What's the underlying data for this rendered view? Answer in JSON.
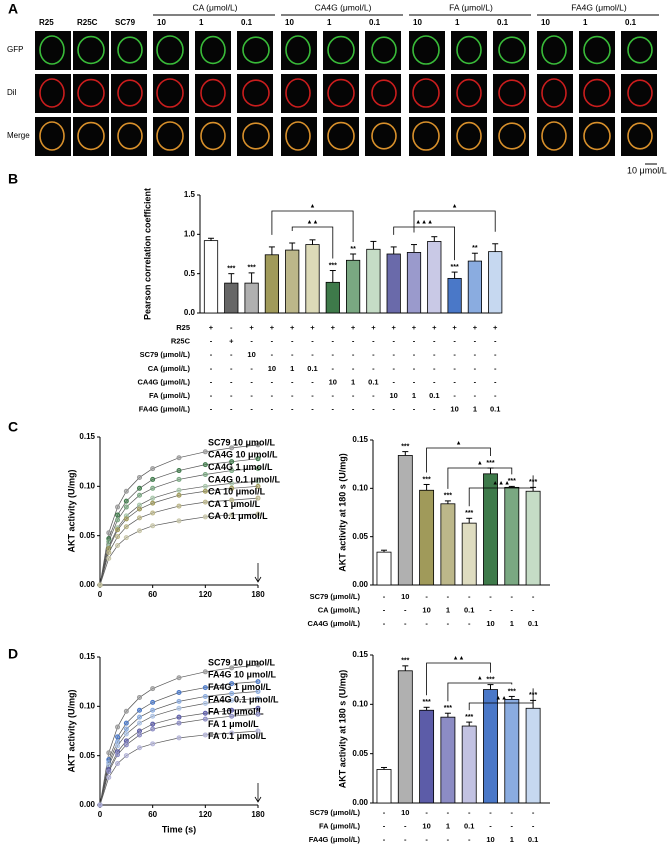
{
  "panel_letters": [
    "A",
    "B",
    "C",
    "D"
  ],
  "panel_a": {
    "single_columns": [
      "R25",
      "R25C",
      "SC79"
    ],
    "groups": [
      {
        "label": "CA (μmol/L)",
        "doses": [
          "10",
          "1",
          "0.1"
        ]
      },
      {
        "label": "CA4G (μmol/L)",
        "doses": [
          "10",
          "1",
          "0.1"
        ]
      },
      {
        "label": "FA (μmol/L)",
        "doses": [
          "10",
          "1",
          "0.1"
        ]
      },
      {
        "label": "FA4G (μmol/L)",
        "doses": [
          "10",
          "1",
          "0.1"
        ]
      }
    ],
    "rows": [
      "GFP",
      "DiI",
      "Merge"
    ],
    "scale_bar": "10 μmol/L"
  },
  "chart_data": [
    {
      "type": "bar",
      "ylabel": "Pearson correlation coefficient",
      "values": [
        0.92,
        0.38,
        0.38,
        0.74,
        0.8,
        0.87,
        0.39,
        0.67,
        0.81,
        0.75,
        0.77,
        0.91,
        0.44,
        0.66,
        0.78
      ],
      "errors": [
        0.03,
        0.12,
        0.13,
        0.1,
        0.09,
        0.06,
        0.15,
        0.08,
        0.1,
        0.09,
        0.1,
        0.06,
        0.08,
        0.1,
        0.1
      ],
      "colors": [
        "#ffffff",
        "#666666",
        "#b0b0b0",
        "#a09a5a",
        "#bcb78a",
        "#dcdab8",
        "#3e7a4a",
        "#7aa882",
        "#c5dcc6",
        "#6a6aaa",
        "#9a9acc",
        "#c9c9e6",
        "#4a78c8",
        "#8aace0",
        "#c6d8f0"
      ],
      "significance": [
        null,
        "***",
        "***",
        null,
        null,
        null,
        "***",
        "**",
        null,
        null,
        null,
        null,
        "***",
        "**",
        null
      ],
      "ylim": [
        0,
        1.5
      ],
      "yticks": [
        {
          "value": 0,
          "label": "0.0"
        },
        0.5,
        {
          "value": 1,
          "label": "1.0"
        },
        1.5
      ],
      "brackets": [
        {
          "bars": [
            3,
            7
          ],
          "label": "▲"
        },
        {
          "bars": [
            4,
            6
          ],
          "label": "▲▲"
        },
        {
          "bars": [
            10,
            14
          ],
          "label": "▲"
        },
        {
          "bars": [
            9,
            12
          ],
          "label": "▲▲▲"
        }
      ],
      "table": {
        "rows": [
          {
            "label": "R25",
            "cells": [
              "+",
              "-",
              "+",
              "+",
              "+",
              "+",
              "+",
              "+",
              "+",
              "+",
              "+",
              "+",
              "+",
              "+",
              "+"
            ]
          },
          {
            "label": "R25C",
            "cells": [
              "-",
              "+",
              "-",
              "-",
              "-",
              "-",
              "-",
              "-",
              "-",
              "-",
              "-",
              "-",
              "-",
              "-",
              "-"
            ]
          },
          {
            "label": "SC79 (μmol/L)",
            "cells": [
              "-",
              "-",
              "10",
              "-",
              "-",
              "-",
              "-",
              "-",
              "-",
              "-",
              "-",
              "-",
              "-",
              "-",
              "-"
            ]
          },
          {
            "label": "CA (μmol/L)",
            "cells": [
              "-",
              "-",
              "-",
              "10",
              "1",
              "0.1",
              "-",
              "-",
              "-",
              "-",
              "-",
              "-",
              "-",
              "-",
              "-"
            ]
          },
          {
            "label": "CA4G (μmol/L)",
            "cells": [
              "-",
              "-",
              "-",
              "-",
              "-",
              "-",
              "10",
              "1",
              "0.1",
              "-",
              "-",
              "-",
              "-",
              "-",
              "-"
            ]
          },
          {
            "label": "FA (μmol/L)",
            "cells": [
              "-",
              "-",
              "-",
              "-",
              "-",
              "-",
              "-",
              "-",
              "-",
              "10",
              "1",
              "0.1",
              "-",
              "-",
              "-"
            ]
          },
          {
            "label": "FA4G (μmol/L)",
            "cells": [
              "-",
              "-",
              "-",
              "-",
              "-",
              "-",
              "-",
              "-",
              "-",
              "-",
              "-",
              "-",
              "10",
              "1",
              "0.1"
            ]
          }
        ]
      }
    },
    {
      "type": "line",
      "ylabel": "AKT activity (U/mg)",
      "x": [
        0,
        10,
        20,
        30,
        45,
        60,
        90,
        120,
        150,
        180
      ],
      "xlim": [
        0,
        180
      ],
      "xticks": [
        0,
        60,
        120,
        180
      ],
      "ylim": [
        0,
        0.15
      ],
      "yticks": [
        {
          "value": 0,
          "label": "0.00"
        },
        0.05,
        {
          "value": 0.1,
          "label": "0.10"
        },
        0.15
      ],
      "series": [
        {
          "name": "SC79 10 μmol/L",
          "color": "#9a9a9a",
          "values": [
            0,
            0.053,
            0.079,
            0.095,
            0.109,
            0.118,
            0.129,
            0.135,
            0.139,
            0.142
          ]
        },
        {
          "name": "CA4G 10 μmol/L",
          "color": "#3e7a4a",
          "values": [
            0,
            0.047,
            0.071,
            0.085,
            0.098,
            0.107,
            0.116,
            0.122,
            0.125,
            0.128
          ]
        },
        {
          "name": "CA4G 1 μmol/L",
          "color": "#7aa882",
          "values": [
            0,
            0.044,
            0.066,
            0.079,
            0.091,
            0.098,
            0.107,
            0.112,
            0.116,
            0.118
          ]
        },
        {
          "name": "CA4G 0.1 μmol/L",
          "color": "#a9c8ac",
          "values": [
            0,
            0.039,
            0.058,
            0.07,
            0.081,
            0.088,
            0.096,
            0.1,
            0.103,
            0.105
          ]
        },
        {
          "name": "CA 10 μmol/L",
          "color": "#a09a5a",
          "values": [
            0,
            0.037,
            0.056,
            0.067,
            0.077,
            0.083,
            0.091,
            0.095,
            0.098,
            0.1
          ]
        },
        {
          "name": "CA 1 μmol/L",
          "color": "#bcb78a",
          "values": [
            0,
            0.033,
            0.049,
            0.059,
            0.068,
            0.073,
            0.08,
            0.084,
            0.086,
            0.088
          ]
        },
        {
          "name": "CA 0.1 μmol/L",
          "color": "#c8c6a8",
          "values": [
            0,
            0.027,
            0.04,
            0.048,
            0.055,
            0.06,
            0.065,
            0.069,
            0.071,
            0.072
          ]
        }
      ]
    },
    {
      "type": "bar",
      "ylabel": "AKT activity at 180 s (U/mg)",
      "values": [
        0.034,
        0.134,
        0.098,
        0.084,
        0.064,
        0.115,
        0.101,
        0.097
      ],
      "errors": [
        0.002,
        0.004,
        0.006,
        0.003,
        0.005,
        0.006,
        0.001,
        0.004
      ],
      "colors": [
        "#ffffff",
        "#b0b0b0",
        "#a09a5a",
        "#bcb78a",
        "#dedcc0",
        "#3e7a4a",
        "#7aa882",
        "#c5dcc6"
      ],
      "significance": [
        null,
        "***",
        "***",
        "***",
        "***",
        "***",
        "***",
        "***"
      ],
      "ylim": [
        0,
        0.15
      ],
      "yticks": [
        {
          "value": 0,
          "label": "0.00"
        },
        0.05,
        {
          "value": 0.1,
          "label": "0.10"
        },
        0.15
      ],
      "brackets": [
        {
          "bars": [
            2,
            5
          ],
          "label": "▲"
        },
        {
          "bars": [
            3,
            6
          ],
          "label": "▲"
        },
        {
          "bars": [
            4,
            7
          ],
          "label": "▲▲▲"
        }
      ],
      "table": {
        "rows": [
          {
            "label": "SC79 (μmol/L)",
            "cells": [
              "-",
              "10",
              "-",
              "-",
              "-",
              "-",
              "-",
              "-"
            ]
          },
          {
            "label": "CA (μmol/L)",
            "cells": [
              "-",
              "-",
              "10",
              "1",
              "0.1",
              "-",
              "-",
              "-"
            ]
          },
          {
            "label": "CA4G (μmol/L)",
            "cells": [
              "-",
              "-",
              "-",
              "-",
              "-",
              "10",
              "1",
              "0.1"
            ]
          }
        ]
      }
    },
    {
      "type": "line",
      "ylabel": "AKT activity (U/mg)",
      "xlabel": "Time (s)",
      "x": [
        0,
        10,
        20,
        30,
        45,
        60,
        90,
        120,
        150,
        180
      ],
      "xlim": [
        0,
        180
      ],
      "xticks": [
        0,
        60,
        120,
        180
      ],
      "ylim": [
        0,
        0.15
      ],
      "yticks": [
        {
          "value": 0,
          "label": "0.00"
        },
        0.05,
        {
          "value": 0.1,
          "label": "0.10"
        },
        0.15
      ],
      "series": [
        {
          "name": "SC79 10 μmol/L",
          "color": "#9a9a9a",
          "values": [
            0,
            0.053,
            0.079,
            0.095,
            0.109,
            0.118,
            0.129,
            0.135,
            0.139,
            0.142
          ]
        },
        {
          "name": "FA4G 10 μmol/L",
          "color": "#4a78c8",
          "values": [
            0,
            0.046,
            0.069,
            0.083,
            0.096,
            0.104,
            0.114,
            0.119,
            0.123,
            0.125
          ]
        },
        {
          "name": "FA4G 1 μmol/L",
          "color": "#8aace0",
          "values": [
            0,
            0.043,
            0.064,
            0.077,
            0.089,
            0.096,
            0.105,
            0.11,
            0.113,
            0.115
          ]
        },
        {
          "name": "FA4G 0.1 μmol/L",
          "color": "#aec4e6",
          "values": [
            0,
            0.04,
            0.06,
            0.072,
            0.083,
            0.09,
            0.098,
            0.103,
            0.106,
            0.108
          ]
        },
        {
          "name": "FA 10 μmol/L",
          "color": "#5c5ca8",
          "values": [
            0,
            0.036,
            0.054,
            0.065,
            0.075,
            0.082,
            0.089,
            0.093,
            0.096,
            0.098
          ]
        },
        {
          "name": "FA 1 μmol/L",
          "color": "#8c8cc4",
          "values": [
            0,
            0.034,
            0.051,
            0.061,
            0.071,
            0.077,
            0.083,
            0.087,
            0.09,
            0.092
          ]
        },
        {
          "name": "FA 0.1 μmol/L",
          "color": "#b4b4d8",
          "values": [
            0,
            0.028,
            0.042,
            0.05,
            0.058,
            0.062,
            0.068,
            0.071,
            0.073,
            0.075
          ]
        }
      ]
    },
    {
      "type": "bar",
      "ylabel": "AKT activity at 180 s (U/mg)",
      "values": [
        0.034,
        0.134,
        0.094,
        0.087,
        0.078,
        0.115,
        0.105,
        0.096
      ],
      "errors": [
        0.002,
        0.005,
        0.003,
        0.004,
        0.004,
        0.005,
        0.003,
        0.008
      ],
      "colors": [
        "#ffffff",
        "#b0b0b0",
        "#5c5ca8",
        "#8c8cc4",
        "#c2c2e2",
        "#4a78c8",
        "#8aace0",
        "#c6d8f0"
      ],
      "significance": [
        null,
        "***",
        "***",
        "***",
        "***",
        "***",
        "***",
        "***"
      ],
      "ylim": [
        0,
        0.15
      ],
      "yticks": [
        {
          "value": 0,
          "label": "0.00"
        },
        0.05,
        {
          "value": 0.1,
          "label": "0.10"
        },
        0.15
      ],
      "brackets": [
        {
          "bars": [
            2,
            5
          ],
          "label": "▲▲"
        },
        {
          "bars": [
            3,
            6
          ],
          "label": "▲"
        },
        {
          "bars": [
            4,
            7
          ],
          "label": "▲▲"
        }
      ],
      "table": {
        "rows": [
          {
            "label": "SC79 (μmol/L)",
            "cells": [
              "-",
              "10",
              "-",
              "-",
              "-",
              "-",
              "-",
              "-"
            ]
          },
          {
            "label": "FA (μmol/L)",
            "cells": [
              "-",
              "-",
              "10",
              "1",
              "0.1",
              "-",
              "-",
              "-"
            ]
          },
          {
            "label": "FA4G (μmol/L)",
            "cells": [
              "-",
              "-",
              "-",
              "-",
              "-",
              "10",
              "1",
              "0.1"
            ]
          }
        ]
      }
    }
  ]
}
